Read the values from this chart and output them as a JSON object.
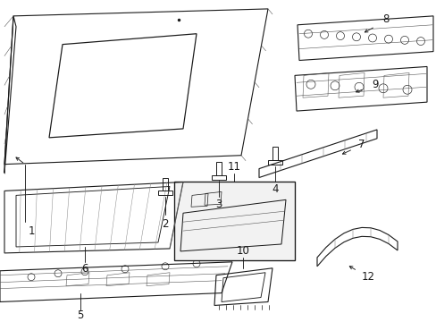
{
  "bg_color": "#ffffff",
  "line_color": "#1a1a1a",
  "lw": 0.8,
  "fs": 8.5
}
